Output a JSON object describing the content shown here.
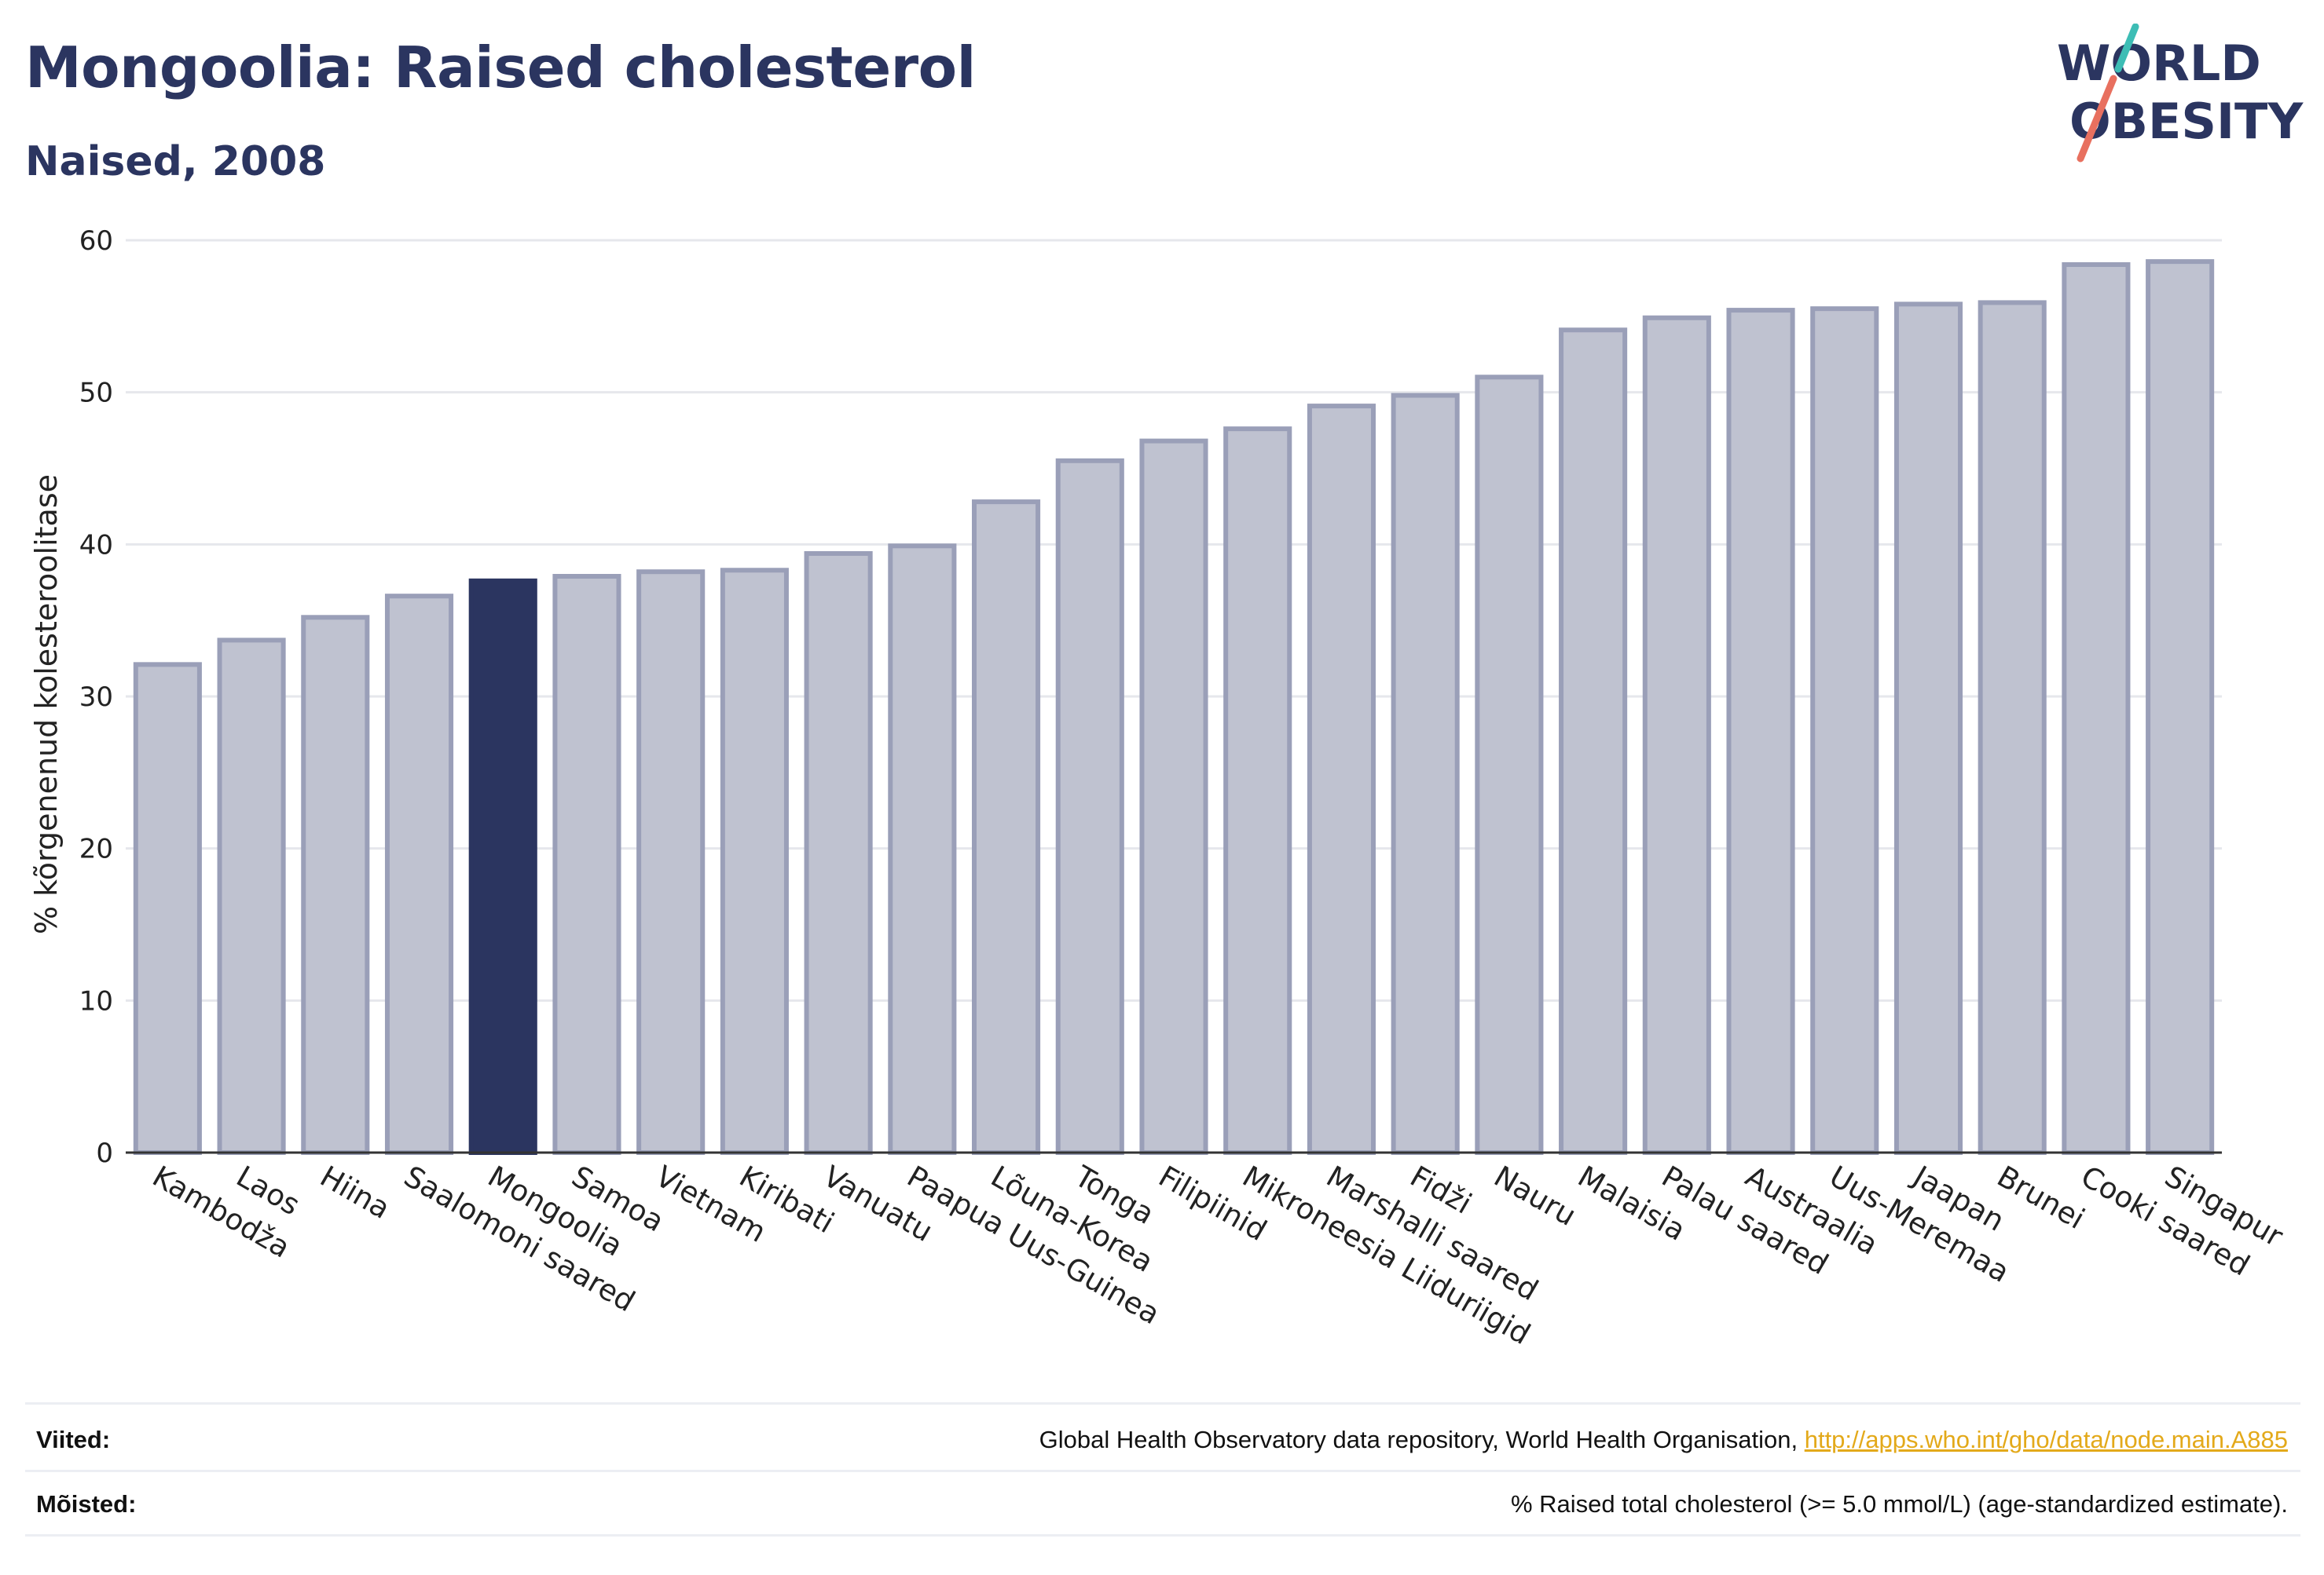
{
  "header": {
    "title": "Mongoolia: Raised cholesterol",
    "subtitle": "Naised, 2008"
  },
  "logo": {
    "line1": "WORLD",
    "line2": "OBESITY",
    "colors": {
      "text": "#2b3560",
      "slash_teal": "#3dbdb5",
      "slash_coral": "#e8705f"
    }
  },
  "chart_data": {
    "type": "bar",
    "ylabel": "% kõrgenenud kolesteroolitase",
    "ylim": [
      0,
      60
    ],
    "yticks": [
      0,
      10,
      20,
      30,
      40,
      50,
      60
    ],
    "grid": true,
    "highlight": "Mongoolia",
    "colors": {
      "bar": "#bfc2d0",
      "bar_edge": "#9a9fb8",
      "highlight": "#2b3560"
    },
    "categories": [
      "Kambodža",
      "Laos",
      "Hiina",
      "Saalomoni saared",
      "Mongoolia",
      "Samoa",
      "Vietnam",
      "Kiribati",
      "Vanuatu",
      "Paapua Uus-Guinea",
      "Lõuna-Korea",
      "Tonga",
      "Filipiinid",
      "Mikroneesia Liiduriigid",
      "Marshalli saared",
      "Fidži",
      "Nauru",
      "Malaisia",
      "Palau saared",
      "Austraalia",
      "Uus-Meremaa",
      "Jaapan",
      "Brunei",
      "Cooki saared",
      "Singapur"
    ],
    "values": [
      32.1,
      33.7,
      35.2,
      36.6,
      37.6,
      37.9,
      38.2,
      38.3,
      39.4,
      39.9,
      42.8,
      45.5,
      46.8,
      47.6,
      49.1,
      49.8,
      51.0,
      54.1,
      54.9,
      55.4,
      55.5,
      55.8,
      55.9,
      58.4,
      58.6
    ]
  },
  "footer": {
    "sources_label": "Viited:",
    "sources_text": "Global Health Observatory data repository, World Health Organisation, ",
    "sources_link": "http://apps.who.int/gho/data/node.main.A885",
    "definitions_label": "Mõisted:",
    "definitions_text": "% Raised total cholesterol (>= 5.0 mmol/L) (age-standardized estimate)."
  }
}
